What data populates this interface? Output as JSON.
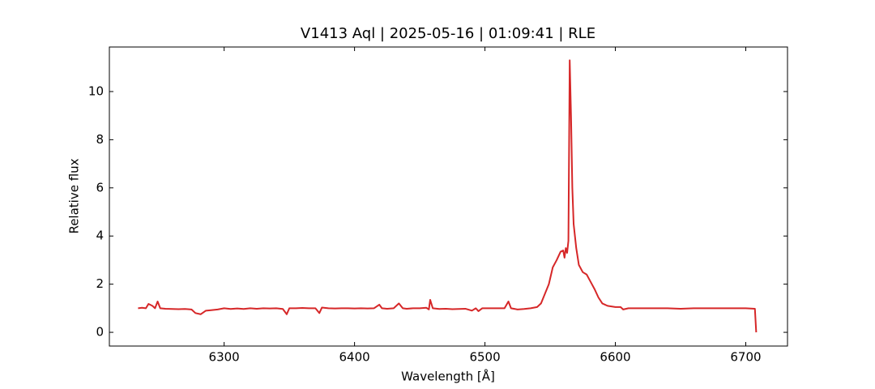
{
  "chart_data": {
    "type": "line",
    "title": "V1413 Aql | 2025-05-16 | 01:09:41 | RLE",
    "x_label": "Wavelength [Å]",
    "y_label": "Relative flux",
    "color": "#d62728",
    "x": [
      6234,
      6237,
      6240,
      6242,
      6245,
      6247,
      6249,
      6251,
      6255,
      6260,
      6265,
      6270,
      6275,
      6278,
      6282,
      6286,
      6290,
      6295,
      6300,
      6305,
      6310,
      6315,
      6320,
      6325,
      6330,
      6335,
      6340,
      6345,
      6348,
      6350,
      6355,
      6360,
      6365,
      6370,
      6373,
      6375,
      6380,
      6385,
      6390,
      6395,
      6400,
      6405,
      6410,
      6415,
      6419,
      6421,
      6425,
      6430,
      6434,
      6437,
      6440,
      6445,
      6450,
      6455,
      6457,
      6458,
      6460,
      6465,
      6470,
      6475,
      6480,
      6485,
      6490,
      6493,
      6495,
      6498,
      6505,
      6510,
      6515,
      6518,
      6520,
      6525,
      6530,
      6535,
      6540,
      6543,
      6546,
      6549,
      6552,
      6555,
      6558,
      6560,
      6561,
      6562,
      6563,
      6564,
      6565,
      6566,
      6567,
      6568,
      6570,
      6572,
      6575,
      6578,
      6581,
      6584,
      6587,
      6590,
      6594,
      6600,
      6604,
      6606,
      6610,
      6620,
      6630,
      6640,
      6650,
      6660,
      6670,
      6680,
      6690,
      6700,
      6707,
      6708
    ],
    "values": [
      1.0,
      1.02,
      1.0,
      1.18,
      1.1,
      1.0,
      1.28,
      1.0,
      0.98,
      0.97,
      0.96,
      0.97,
      0.95,
      0.8,
      0.75,
      0.9,
      0.92,
      0.95,
      1.0,
      0.97,
      0.99,
      0.97,
      1.0,
      0.98,
      1.0,
      0.99,
      1.0,
      0.97,
      0.75,
      1.0,
      1.0,
      1.01,
      1.0,
      1.0,
      0.8,
      1.03,
      1.0,
      0.99,
      1.0,
      1.0,
      0.99,
      1.0,
      0.99,
      1.0,
      1.15,
      1.0,
      0.98,
      1.0,
      1.2,
      1.0,
      0.98,
      1.0,
      1.0,
      1.02,
      0.95,
      1.35,
      1.0,
      0.97,
      0.98,
      0.96,
      0.97,
      0.98,
      0.9,
      1.0,
      0.88,
      1.0,
      1.0,
      1.0,
      1.0,
      1.28,
      1.0,
      0.95,
      0.97,
      1.0,
      1.05,
      1.2,
      1.6,
      2.0,
      2.7,
      3.0,
      3.35,
      3.4,
      3.1,
      3.5,
      3.3,
      3.8,
      11.3,
      9.0,
      6.0,
      4.5,
      3.5,
      2.8,
      2.5,
      2.4,
      2.1,
      1.8,
      1.45,
      1.2,
      1.1,
      1.05,
      1.05,
      0.95,
      1.0,
      1.0,
      1.0,
      1.0,
      0.98,
      1.0,
      1.0,
      1.0,
      1.0,
      1.0,
      0.98,
      0.0
    ],
    "xlim": [
      6212,
      6732
    ],
    "ylim": [
      -0.57,
      11.85
    ],
    "xticks": [
      6300,
      6400,
      6500,
      6600,
      6700
    ],
    "yticks": [
      0,
      2,
      4,
      6,
      8,
      10
    ]
  }
}
